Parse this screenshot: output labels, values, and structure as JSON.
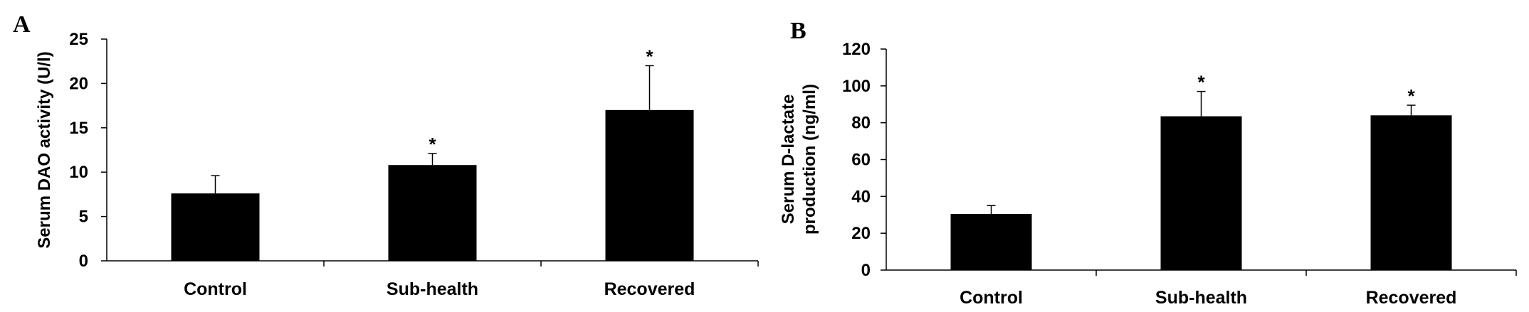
{
  "chart_data": [
    {
      "type": "bar",
      "panel_label": "A",
      "categories": [
        "Control",
        "Sub-health",
        "Recovered"
      ],
      "values": [
        7.6,
        10.8,
        17.0
      ],
      "error_upper": [
        9.6,
        12.1,
        22.0
      ],
      "significance": [
        "",
        "*",
        "*"
      ],
      "title": "",
      "xlabel": "",
      "ylabel": "Serum DAO activity (U/l)",
      "ylabel_lines": [
        "Serum DAO activity (U/l)"
      ],
      "ylim": [
        0,
        25
      ],
      "yticks": [
        0,
        5,
        10,
        15,
        20,
        25
      ],
      "grid": false,
      "bar_color": "#000000"
    },
    {
      "type": "bar",
      "panel_label": "B",
      "categories": [
        "Control",
        "Sub-health",
        "Recovered"
      ],
      "values": [
        30.5,
        83.5,
        84.0
      ],
      "error_upper": [
        35.0,
        97.0,
        89.5
      ],
      "significance": [
        "",
        "*",
        "*"
      ],
      "title": "",
      "xlabel": "",
      "ylabel": "Serum D-lactate production  (ng/ml)",
      "ylabel_lines": [
        "Serum D-lactate",
        "production  (ng/ml)"
      ],
      "ylim": [
        0,
        120
      ],
      "yticks": [
        0,
        20,
        40,
        60,
        80,
        100,
        120
      ],
      "grid": false,
      "bar_color": "#000000"
    }
  ]
}
